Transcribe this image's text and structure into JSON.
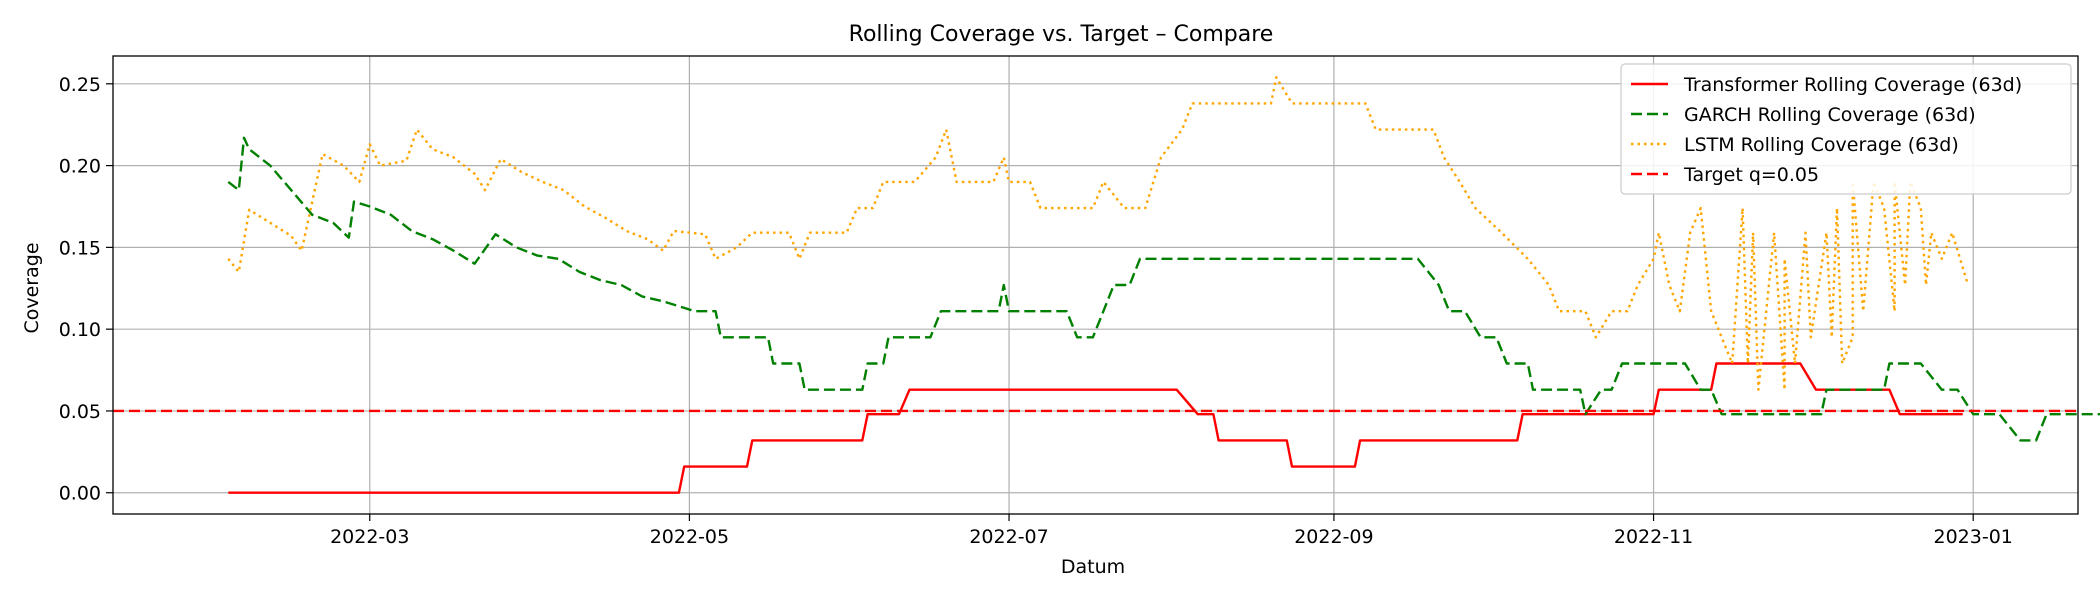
{
  "chart_data": {
    "type": "line",
    "title": "Rolling Coverage vs. Target – Compare",
    "xlabel": "Datum",
    "ylabel": "Coverage",
    "xlim": [
      "2022-01-11",
      "2023-01-21"
    ],
    "ylim": [
      -0.013,
      0.267
    ],
    "x_ticks": [
      "2022-03-01",
      "2022-05-01",
      "2022-07-01",
      "2022-09-01",
      "2022-11-01",
      "2023-01-01"
    ],
    "x_tick_labels": [
      "2022-03",
      "2022-05",
      "2022-07",
      "2022-09",
      "2022-11",
      "2023-01"
    ],
    "y_ticks": [
      0.0,
      0.05,
      0.1,
      0.15,
      0.2,
      0.25
    ],
    "y_tick_labels": [
      "0.00",
      "0.05",
      "0.10",
      "0.15",
      "0.20",
      "0.25"
    ],
    "grid": true,
    "legend_position": "top-right",
    "series": [
      {
        "name": "Transformer Rolling Coverage (63d)",
        "color": "#ff0000",
        "style": "solid",
        "points": [
          [
            "2022-02-02",
            0.0
          ],
          [
            "2022-04-29",
            0.0
          ],
          [
            "2022-04-30",
            0.016
          ],
          [
            "2022-05-12",
            0.016
          ],
          [
            "2022-05-13",
            0.032
          ],
          [
            "2022-05-17",
            0.032
          ],
          [
            "2022-05-18",
            0.032
          ],
          [
            "2022-06-03",
            0.032
          ],
          [
            "2022-06-04",
            0.048
          ],
          [
            "2022-06-10",
            0.048
          ],
          [
            "2022-06-12",
            0.063
          ],
          [
            "2022-08-02",
            0.063
          ],
          [
            "2022-08-06",
            0.048
          ],
          [
            "2022-08-09",
            0.048
          ],
          [
            "2022-08-10",
            0.032
          ],
          [
            "2022-08-23",
            0.032
          ],
          [
            "2022-08-24",
            0.016
          ],
          [
            "2022-09-05",
            0.016
          ],
          [
            "2022-09-06",
            0.032
          ],
          [
            "2022-10-06",
            0.032
          ],
          [
            "2022-10-07",
            0.048
          ],
          [
            "2022-11-01",
            0.048
          ],
          [
            "2022-11-02",
            0.063
          ],
          [
            "2022-11-12",
            0.063
          ],
          [
            "2022-11-13",
            0.079
          ],
          [
            "2022-11-29",
            0.079
          ],
          [
            "2022-12-02",
            0.063
          ],
          [
            "2022-12-16",
            0.063
          ],
          [
            "2022-12-18",
            0.048
          ],
          [
            "2022-12-30",
            0.048
          ]
        ]
      },
      {
        "name": "GARCH Rolling Coverage (63d)",
        "color": "#008000",
        "style": "dashed",
        "points": [
          [
            "2022-02-02",
            0.19
          ],
          [
            "2022-02-04",
            0.185
          ],
          [
            "2022-02-05",
            0.217
          ],
          [
            "2022-02-06",
            0.21
          ],
          [
            "2022-02-10",
            0.2
          ],
          [
            "2022-02-14",
            0.185
          ],
          [
            "2022-02-18",
            0.17
          ],
          [
            "2022-02-22",
            0.165
          ],
          [
            "2022-02-25",
            0.156
          ],
          [
            "2022-02-26",
            0.178
          ],
          [
            "2022-03-01",
            0.175
          ],
          [
            "2022-03-05",
            0.17
          ],
          [
            "2022-03-09",
            0.16
          ],
          [
            "2022-03-13",
            0.155
          ],
          [
            "2022-03-17",
            0.148
          ],
          [
            "2022-03-21",
            0.14
          ],
          [
            "2022-03-25",
            0.158
          ],
          [
            "2022-03-29",
            0.15
          ],
          [
            "2022-04-02",
            0.145
          ],
          [
            "2022-04-06",
            0.143
          ],
          [
            "2022-04-10",
            0.135
          ],
          [
            "2022-04-14",
            0.13
          ],
          [
            "2022-04-18",
            0.127
          ],
          [
            "2022-04-22",
            0.12
          ],
          [
            "2022-04-26",
            0.117
          ],
          [
            "2022-04-30",
            0.113
          ],
          [
            "2022-05-02",
            0.111
          ],
          [
            "2022-05-06",
            0.111
          ],
          [
            "2022-05-07",
            0.095
          ],
          [
            "2022-05-16",
            0.095
          ],
          [
            "2022-05-17",
            0.079
          ],
          [
            "2022-05-22",
            0.079
          ],
          [
            "2022-05-23",
            0.063
          ],
          [
            "2022-06-03",
            0.063
          ],
          [
            "2022-06-04",
            0.079
          ],
          [
            "2022-06-07",
            0.079
          ],
          [
            "2022-06-08",
            0.095
          ],
          [
            "2022-06-16",
            0.095
          ],
          [
            "2022-06-18",
            0.111
          ],
          [
            "2022-06-29",
            0.111
          ],
          [
            "2022-06-30",
            0.127
          ],
          [
            "2022-07-01",
            0.111
          ],
          [
            "2022-07-12",
            0.111
          ],
          [
            "2022-07-14",
            0.095
          ],
          [
            "2022-07-17",
            0.095
          ],
          [
            "2022-07-19",
            0.111
          ],
          [
            "2022-07-21",
            0.127
          ],
          [
            "2022-07-24",
            0.127
          ],
          [
            "2022-07-26",
            0.143
          ],
          [
            "2022-09-17",
            0.143
          ],
          [
            "2022-09-21",
            0.127
          ],
          [
            "2022-09-23",
            0.111
          ],
          [
            "2022-09-26",
            0.111
          ],
          [
            "2022-09-29",
            0.095
          ],
          [
            "2022-10-02",
            0.095
          ],
          [
            "2022-10-04",
            0.079
          ],
          [
            "2022-10-08",
            0.079
          ],
          [
            "2022-10-09",
            0.063
          ],
          [
            "2022-10-18",
            0.063
          ],
          [
            "2022-10-19",
            0.048
          ],
          [
            "2022-10-22",
            0.063
          ],
          [
            "2022-10-24",
            0.063
          ],
          [
            "2022-10-26",
            0.079
          ],
          [
            "2022-11-07",
            0.079
          ],
          [
            "2022-11-10",
            0.063
          ],
          [
            "2022-11-12",
            0.063
          ],
          [
            "2022-11-14",
            0.048
          ],
          [
            "2022-12-03",
            0.048
          ],
          [
            "2022-12-04",
            0.063
          ],
          [
            "2022-12-15",
            0.063
          ],
          [
            "2022-12-16",
            0.079
          ],
          [
            "2022-12-22",
            0.079
          ],
          [
            "2022-12-26",
            0.063
          ],
          [
            "2022-12-29",
            0.063
          ],
          [
            "2023-01-01",
            0.048
          ],
          [
            "2023-01-06",
            0.048
          ],
          [
            "2023-01-10",
            0.032
          ],
          [
            "2023-01-13",
            0.032
          ],
          [
            "2023-01-15",
            0.048
          ],
          [
            "2023-01-30",
            0.048
          ]
        ]
      },
      {
        "name": "LSTM Rolling Coverage (63d)",
        "color": "#ffa500",
        "style": "dotted",
        "points": [
          [
            "2022-02-02",
            0.143
          ],
          [
            "2022-02-04",
            0.135
          ],
          [
            "2022-02-06",
            0.173
          ],
          [
            "2022-02-10",
            0.165
          ],
          [
            "2022-02-14",
            0.157
          ],
          [
            "2022-02-16",
            0.148
          ],
          [
            "2022-02-20",
            0.207
          ],
          [
            "2022-02-24",
            0.2
          ],
          [
            "2022-02-27",
            0.19
          ],
          [
            "2022-03-01",
            0.213
          ],
          [
            "2022-03-03",
            0.2
          ],
          [
            "2022-03-08",
            0.203
          ],
          [
            "2022-03-10",
            0.222
          ],
          [
            "2022-03-13",
            0.21
          ],
          [
            "2022-03-17",
            0.205
          ],
          [
            "2022-03-21",
            0.195
          ],
          [
            "2022-03-23",
            0.185
          ],
          [
            "2022-03-26",
            0.204
          ],
          [
            "2022-03-30",
            0.196
          ],
          [
            "2022-04-03",
            0.19
          ],
          [
            "2022-04-07",
            0.185
          ],
          [
            "2022-04-11",
            0.175
          ],
          [
            "2022-04-15",
            0.168
          ],
          [
            "2022-04-19",
            0.16
          ],
          [
            "2022-04-23",
            0.155
          ],
          [
            "2022-04-26",
            0.148
          ],
          [
            "2022-04-28",
            0.16
          ],
          [
            "2022-05-04",
            0.158
          ],
          [
            "2022-05-06",
            0.143
          ],
          [
            "2022-05-10",
            0.15
          ],
          [
            "2022-05-13",
            0.159
          ],
          [
            "2022-05-20",
            0.159
          ],
          [
            "2022-05-22",
            0.143
          ],
          [
            "2022-05-24",
            0.159
          ],
          [
            "2022-05-31",
            0.159
          ],
          [
            "2022-06-02",
            0.174
          ],
          [
            "2022-06-05",
            0.174
          ],
          [
            "2022-06-07",
            0.19
          ],
          [
            "2022-06-13",
            0.19
          ],
          [
            "2022-06-17",
            0.205
          ],
          [
            "2022-06-19",
            0.222
          ],
          [
            "2022-06-21",
            0.19
          ],
          [
            "2022-06-28",
            0.19
          ],
          [
            "2022-06-30",
            0.205
          ],
          [
            "2022-07-01",
            0.19
          ],
          [
            "2022-07-05",
            0.19
          ],
          [
            "2022-07-07",
            0.174
          ],
          [
            "2022-07-17",
            0.174
          ],
          [
            "2022-07-19",
            0.19
          ],
          [
            "2022-07-23",
            0.174
          ],
          [
            "2022-07-27",
            0.174
          ],
          [
            "2022-07-30",
            0.205
          ],
          [
            "2022-08-03",
            0.222
          ],
          [
            "2022-08-05",
            0.238
          ],
          [
            "2022-08-20",
            0.238
          ],
          [
            "2022-08-21",
            0.254
          ],
          [
            "2022-08-24",
            0.238
          ],
          [
            "2022-09-07",
            0.238
          ],
          [
            "2022-09-09",
            0.222
          ],
          [
            "2022-09-20",
            0.222
          ],
          [
            "2022-09-22",
            0.205
          ],
          [
            "2022-09-25",
            0.19
          ],
          [
            "2022-09-28",
            0.174
          ],
          [
            "2022-10-01",
            0.165
          ],
          [
            "2022-10-03",
            0.159
          ],
          [
            "2022-10-08",
            0.143
          ],
          [
            "2022-10-12",
            0.127
          ],
          [
            "2022-10-14",
            0.111
          ],
          [
            "2022-10-19",
            0.111
          ],
          [
            "2022-10-21",
            0.095
          ],
          [
            "2022-10-24",
            0.111
          ],
          [
            "2022-10-27",
            0.111
          ],
          [
            "2022-10-29",
            0.127
          ],
          [
            "2022-11-04",
            0.127
          ],
          [
            "2022-11-06",
            0.111
          ],
          [
            "2022-11-12",
            0.111
          ],
          [
            "2022-11-14",
            0.095
          ],
          [
            "2022-11-16",
            0.079
          ],
          [
            "2022-11-19",
            0.079
          ],
          [
            "2022-11-21",
            0.063
          ],
          [
            "2022-11-26",
            0.063
          ],
          [
            "2022-11-28",
            0.079
          ],
          [
            "2022-12-01",
            0.095
          ],
          [
            "2022-12-05",
            0.095
          ],
          [
            "2022-12-07",
            0.079
          ],
          [
            "2022-12-09",
            0.095
          ],
          [
            "2022-12-11",
            0.111
          ],
          [
            "2022-12-17",
            0.111
          ],
          [
            "2022-12-19",
            0.127
          ],
          [
            "2022-12-23",
            0.127
          ],
          [
            "2022-12-26",
            0.143
          ],
          [
            "2022-11-01",
            0.143
          ],
          [
            "2022-11-02",
            0.159
          ],
          [
            "2022-11-08",
            0.159
          ],
          [
            "2022-11-10",
            0.174
          ],
          [
            "2022-11-18",
            0.174
          ],
          [
            "2022-11-20",
            0.159
          ],
          [
            "2022-11-24",
            0.159
          ],
          [
            "2022-11-26",
            0.143
          ],
          [
            "2022-11-30",
            0.159
          ],
          [
            "2022-12-04",
            0.159
          ],
          [
            "2022-12-06",
            0.174
          ],
          [
            "2022-12-09",
            0.19
          ],
          [
            "2022-12-13",
            0.19
          ],
          [
            "2022-12-15",
            0.174
          ],
          [
            "2022-12-17",
            0.19
          ],
          [
            "2022-12-20",
            0.19
          ],
          [
            "2022-12-22",
            0.174
          ],
          [
            "2022-12-24",
            0.159
          ],
          [
            "2022-12-28",
            0.159
          ],
          [
            "2022-12-31",
            0.127
          ]
        ]
      },
      {
        "name": "Target q=0.05",
        "color": "#ff0000",
        "style": "dashed",
        "constant": 0.05
      }
    ]
  }
}
